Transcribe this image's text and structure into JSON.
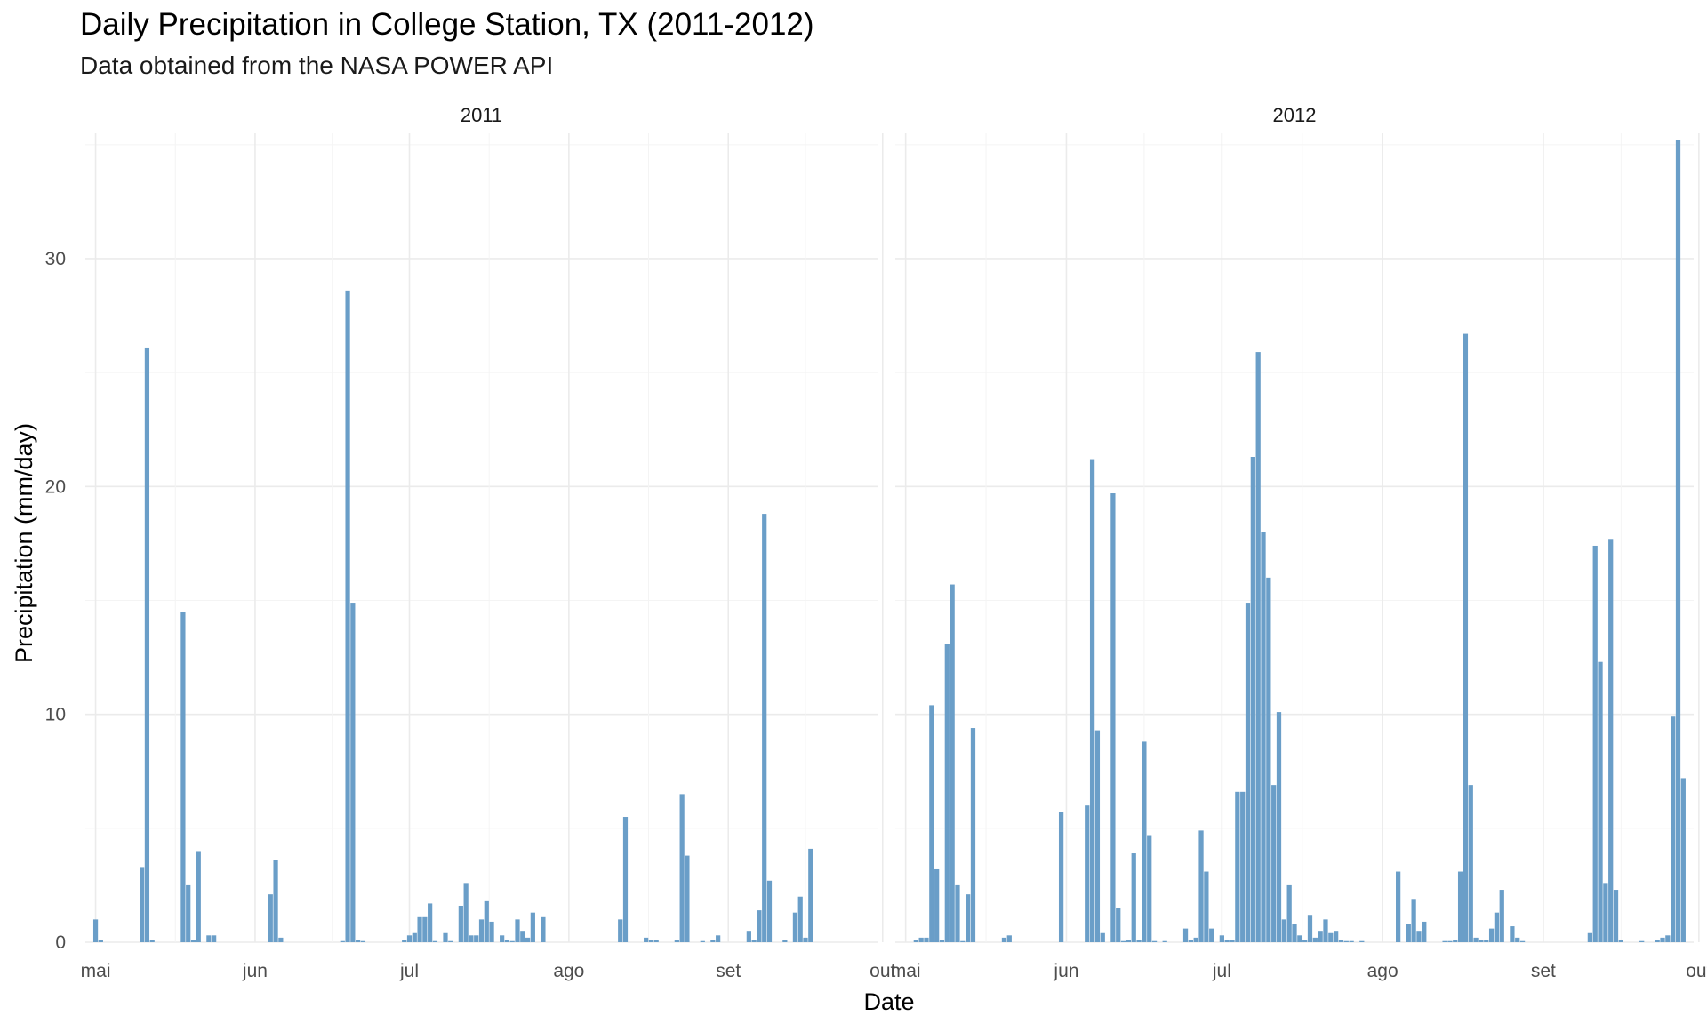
{
  "chart_data": {
    "type": "bar",
    "title": "Daily Precipitation in College Station, TX (2011-2012)",
    "subtitle": "Data obtained from the NASA POWER API",
    "xlabel": "Date",
    "ylabel": "Precipitation (mm/day)",
    "ylim": [
      0,
      35.5
    ],
    "yticks": [
      "0",
      "10",
      "20",
      "30"
    ],
    "xlim_days": [
      -2,
      152
    ],
    "x_tick_labels": [
      "mai",
      "jun",
      "jul",
      "ago",
      "set",
      "out"
    ],
    "grid": true,
    "color": "#6a9ec8",
    "panels": [
      {
        "label": "2011",
        "x": [
          "2011-05-01",
          "2011-05-02",
          "2011-05-10",
          "2011-05-11",
          "2011-05-12",
          "2011-05-18",
          "2011-05-19",
          "2011-05-20",
          "2011-05-21",
          "2011-05-23",
          "2011-05-24",
          "2011-06-04",
          "2011-06-05",
          "2011-06-06",
          "2011-06-18",
          "2011-06-19",
          "2011-06-20",
          "2011-06-21",
          "2011-06-22",
          "2011-06-30",
          "2011-07-01",
          "2011-07-02",
          "2011-07-03",
          "2011-07-04",
          "2011-07-05",
          "2011-07-06",
          "2011-07-08",
          "2011-07-09",
          "2011-07-11",
          "2011-07-12",
          "2011-07-13",
          "2011-07-14",
          "2011-07-15",
          "2011-07-16",
          "2011-07-17",
          "2011-07-19",
          "2011-07-20",
          "2011-07-21",
          "2011-07-22",
          "2011-07-23",
          "2011-07-24",
          "2011-07-25",
          "2011-07-27",
          "2011-08-11",
          "2011-08-12",
          "2011-08-16",
          "2011-08-17",
          "2011-08-18",
          "2011-08-22",
          "2011-08-23",
          "2011-08-24",
          "2011-08-27",
          "2011-08-29",
          "2011-08-30",
          "2011-09-05",
          "2011-09-06",
          "2011-09-07",
          "2011-09-08",
          "2011-09-09",
          "2011-09-12",
          "2011-09-14",
          "2011-09-15",
          "2011-09-16",
          "2011-09-17"
        ],
        "values": [
          1.0,
          0.1,
          3.3,
          26.1,
          0.1,
          14.5,
          2.5,
          0.1,
          4.0,
          0.3,
          0.3,
          2.1,
          3.6,
          0.2,
          0.05,
          28.6,
          14.9,
          0.1,
          0.05,
          0.1,
          0.3,
          0.4,
          1.1,
          1.1,
          1.7,
          0.05,
          0.4,
          0.05,
          1.6,
          2.6,
          0.3,
          0.3,
          1.0,
          1.8,
          0.9,
          0.3,
          0.1,
          0.05,
          1.0,
          0.5,
          0.2,
          1.3,
          1.1,
          1.0,
          5.5,
          0.2,
          0.1,
          0.1,
          0.1,
          6.5,
          3.8,
          0.05,
          0.1,
          0.3,
          0.5,
          0.1,
          1.4,
          18.8,
          2.7,
          0.1,
          1.3,
          2.0,
          0.2,
          4.1
        ]
      },
      {
        "label": "2012",
        "x": [
          "2012-05-03",
          "2012-05-04",
          "2012-05-05",
          "2012-05-06",
          "2012-05-07",
          "2012-05-08",
          "2012-05-09",
          "2012-05-10",
          "2012-05-11",
          "2012-05-12",
          "2012-05-13",
          "2012-05-14",
          "2012-05-20",
          "2012-05-21",
          "2012-05-31",
          "2012-06-05",
          "2012-06-06",
          "2012-06-07",
          "2012-06-08",
          "2012-06-10",
          "2012-06-11",
          "2012-06-12",
          "2012-06-13",
          "2012-06-14",
          "2012-06-15",
          "2012-06-16",
          "2012-06-17",
          "2012-06-18",
          "2012-06-20",
          "2012-06-24",
          "2012-06-25",
          "2012-06-26",
          "2012-06-27",
          "2012-06-28",
          "2012-06-29",
          "2012-07-01",
          "2012-07-02",
          "2012-07-03",
          "2012-07-04",
          "2012-07-05",
          "2012-07-06",
          "2012-07-07",
          "2012-07-08",
          "2012-07-09",
          "2012-07-10",
          "2012-07-11",
          "2012-07-12",
          "2012-07-13",
          "2012-07-14",
          "2012-07-15",
          "2012-07-16",
          "2012-07-17",
          "2012-07-18",
          "2012-07-19",
          "2012-07-20",
          "2012-07-21",
          "2012-07-22",
          "2012-07-23",
          "2012-07-24",
          "2012-07-25",
          "2012-07-26",
          "2012-07-28",
          "2012-08-04",
          "2012-08-06",
          "2012-08-07",
          "2012-08-08",
          "2012-08-09",
          "2012-08-13",
          "2012-08-14",
          "2012-08-15",
          "2012-08-16",
          "2012-08-17",
          "2012-08-18",
          "2012-08-19",
          "2012-08-20",
          "2012-08-21",
          "2012-08-22",
          "2012-08-23",
          "2012-08-24",
          "2012-08-26",
          "2012-08-27",
          "2012-08-28",
          "2012-09-10",
          "2012-09-11",
          "2012-09-12",
          "2012-09-13",
          "2012-09-14",
          "2012-09-15",
          "2012-09-16",
          "2012-09-20",
          "2012-09-23",
          "2012-09-24",
          "2012-09-25",
          "2012-09-26",
          "2012-09-27",
          "2012-09-28"
        ],
        "values": [
          0.1,
          0.2,
          0.2,
          10.4,
          3.2,
          0.1,
          13.1,
          15.7,
          2.5,
          0.05,
          2.1,
          9.4,
          0.2,
          0.3,
          5.7,
          6.0,
          21.2,
          9.3,
          0.4,
          19.7,
          1.5,
          0.05,
          0.1,
          3.9,
          0.1,
          8.8,
          4.7,
          0.05,
          0.05,
          0.6,
          0.1,
          0.2,
          4.9,
          3.1,
          0.6,
          0.3,
          0.1,
          0.1,
          6.6,
          6.6,
          14.9,
          21.3,
          25.9,
          18.0,
          16.0,
          6.9,
          10.1,
          1.0,
          2.5,
          0.8,
          0.3,
          0.1,
          1.2,
          0.2,
          0.5,
          1.0,
          0.4,
          0.5,
          0.1,
          0.05,
          0.05,
          0.05,
          3.1,
          0.8,
          1.9,
          0.5,
          0.9,
          0.05,
          0.05,
          0.1,
          3.1,
          26.7,
          6.9,
          0.2,
          0.1,
          0.1,
          0.6,
          1.3,
          2.3,
          0.7,
          0.2,
          0.05,
          0.4,
          17.4,
          12.3,
          2.6,
          17.7,
          2.3,
          0.1,
          0.05,
          0.1,
          0.2,
          0.3,
          9.9,
          35.2,
          7.2
        ]
      }
    ]
  }
}
